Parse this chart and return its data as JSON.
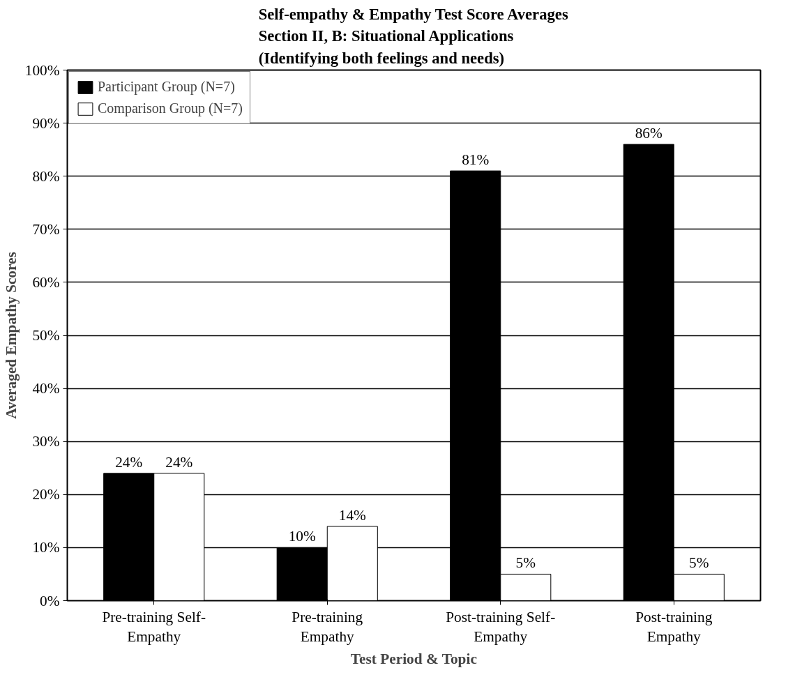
{
  "chart_data": {
    "type": "bar",
    "title": "Self-empathy & Empathy Test Score Averages\nSection II, B: Situational Applications\n(Identifying both feelings and needs)",
    "xlabel": "Test Period & Topic",
    "ylabel": "Averaged Empathy Scores",
    "categories": [
      "Pre-training Self-Empathy",
      "Pre-training Empathy",
      "Post-training Self-Empathy",
      "Post-training Empathy"
    ],
    "series": [
      {
        "name": "Participant Group (N=7)",
        "color": "#000000",
        "values": [
          24,
          10,
          81,
          86
        ],
        "value_labels": [
          "24%",
          "10%",
          "81%",
          "86%"
        ]
      },
      {
        "name": "Comparison Group (N=7)",
        "color": "#ffffff",
        "values": [
          24,
          14,
          5,
          5
        ],
        "value_labels": [
          "24%",
          "14%",
          "5%",
          "5%"
        ]
      }
    ],
    "ylim": [
      0,
      100
    ],
    "yticks": [
      {
        "value": 0,
        "label": "0%"
      },
      {
        "value": 10,
        "label": "10%"
      },
      {
        "value": 20,
        "label": "20%"
      },
      {
        "value": 30,
        "label": "30%"
      },
      {
        "value": 40,
        "label": "40%"
      },
      {
        "value": 50,
        "label": "50%"
      },
      {
        "value": 60,
        "label": "60%"
      },
      {
        "value": 70,
        "label": "70%"
      },
      {
        "value": 80,
        "label": "80%"
      },
      {
        "value": 90,
        "label": "90%"
      },
      {
        "value": 100,
        "label": "100%"
      }
    ],
    "grid": "y",
    "legend": "top left"
  }
}
